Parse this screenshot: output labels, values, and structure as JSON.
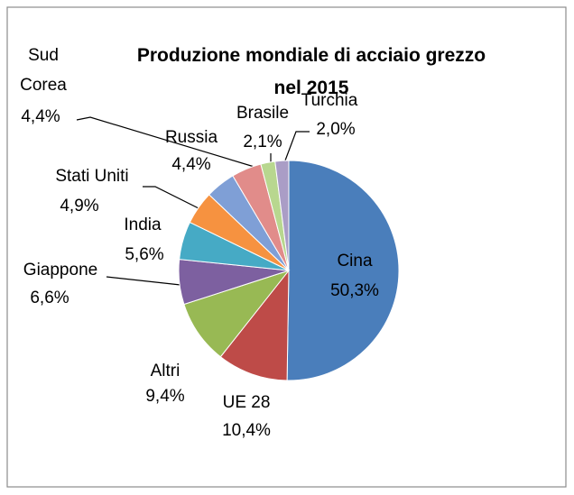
{
  "chart_data": {
    "type": "pie",
    "title": "Produzione mondiale di acciaio grezzo nel 2015",
    "categories": [
      "Cina",
      "UE 28",
      "Altri",
      "Giappone",
      "India",
      "Stati Uniti",
      "Sud Corea",
      "Russia",
      "Brasile",
      "Turchia"
    ],
    "values": [
      50.3,
      10.4,
      9.4,
      6.6,
      5.6,
      4.9,
      4.4,
      4.4,
      2.1,
      2.0
    ],
    "value_labels": [
      "50,3%",
      "10,4%",
      "9,4%",
      "6,6%",
      "5,6%",
      "4,9%",
      "4,4%",
      "4,4%",
      "2,1%",
      "2,0%"
    ],
    "colors": [
      "#4a7ebb",
      "#be4b48",
      "#98b954",
      "#7d60a0",
      "#46aac5",
      "#f69240",
      "#7f9fd6",
      "#e18c8a",
      "#b8d78f",
      "#aa9dc6"
    ]
  }
}
